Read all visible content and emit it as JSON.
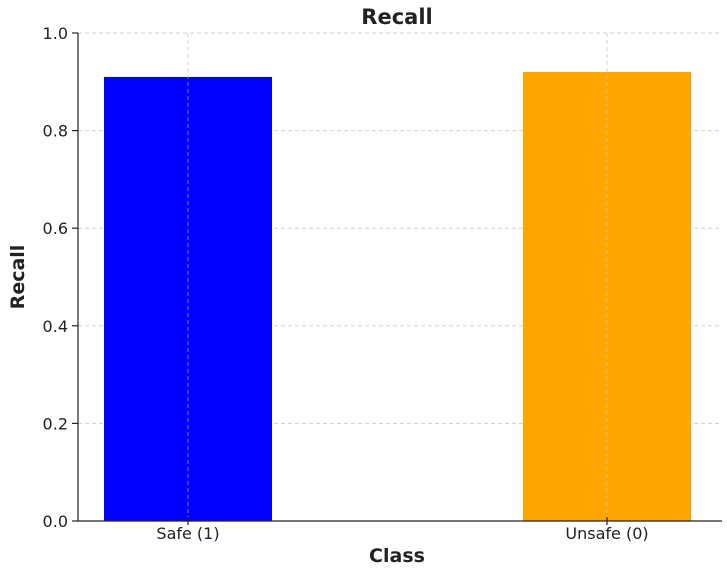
{
  "chart_data": {
    "type": "bar",
    "title": "Recall",
    "xlabel": "Class",
    "ylabel": "Recall",
    "categories": [
      "Safe (1)",
      "Unsafe (0)"
    ],
    "values": [
      0.91,
      0.92
    ],
    "colors": [
      "#0000ff",
      "#ffa500"
    ],
    "ylim": [
      0.0,
      1.0
    ],
    "yticks": [
      "0.0",
      "0.2",
      "0.4",
      "0.6",
      "0.8",
      "1.0"
    ],
    "grid": true,
    "legend": "none"
  }
}
